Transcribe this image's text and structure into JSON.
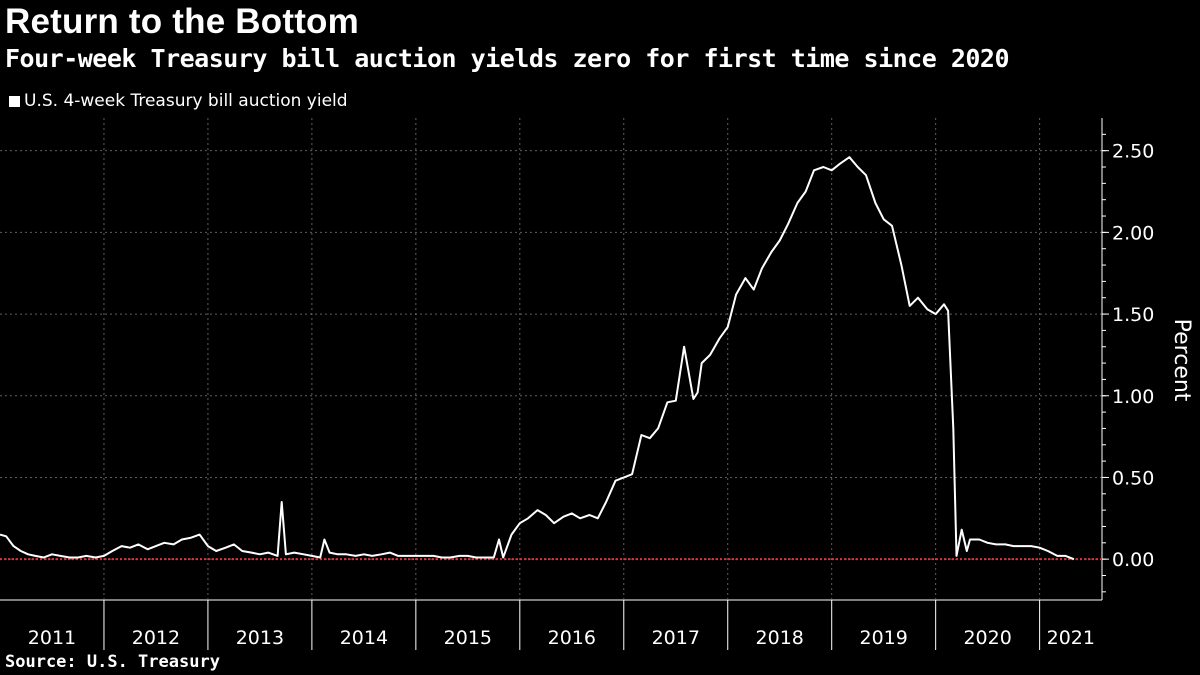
{
  "title": "Return to the Bottom",
  "subtitle": "Four-week Treasury bill auction yields zero for first time since 2020",
  "source": "Source: U.S. Treasury",
  "colors": {
    "background": "#000000",
    "line": "#ffffff",
    "zero_line": "#e0303a",
    "grid": "#888888"
  },
  "chart_data": {
    "type": "line",
    "ylabel": "Percent",
    "ylim": [
      -0.25,
      2.7
    ],
    "yticks": [
      0.0,
      0.5,
      1.0,
      1.5,
      2.0,
      2.5
    ],
    "ytick_labels": [
      "0.00",
      "0.50",
      "1.00",
      "1.50",
      "2.00",
      "2.50"
    ],
    "xlim": [
      2011.0,
      2021.6
    ],
    "year_labels": [
      "2011",
      "2012",
      "2013",
      "2014",
      "2015",
      "2016",
      "2017",
      "2018",
      "2019",
      "2020",
      "2021"
    ],
    "grid": true,
    "reference_line": 0.0,
    "series": [
      {
        "name": "U.S. 4-week Treasury bill auction yield",
        "x": [
          2011.0,
          2011.06,
          2011.13,
          2011.2,
          2011.27,
          2011.34,
          2011.42,
          2011.5,
          2011.58,
          2011.67,
          2011.75,
          2011.83,
          2011.92,
          2012.0,
          2012.08,
          2012.17,
          2012.25,
          2012.33,
          2012.42,
          2012.5,
          2012.58,
          2012.67,
          2012.75,
          2012.83,
          2012.92,
          2013.0,
          2013.08,
          2013.17,
          2013.25,
          2013.33,
          2013.42,
          2013.5,
          2013.58,
          2013.67,
          2013.71,
          2013.75,
          2013.83,
          2013.92,
          2014.0,
          2014.08,
          2014.12,
          2014.17,
          2014.25,
          2014.33,
          2014.42,
          2014.5,
          2014.58,
          2014.67,
          2014.75,
          2014.83,
          2014.92,
          2015.0,
          2015.08,
          2015.17,
          2015.25,
          2015.33,
          2015.42,
          2015.5,
          2015.58,
          2015.67,
          2015.75,
          2015.8,
          2015.84,
          2015.92,
          2016.0,
          2016.08,
          2016.17,
          2016.25,
          2016.33,
          2016.42,
          2016.5,
          2016.58,
          2016.67,
          2016.75,
          2016.83,
          2016.92,
          2017.0,
          2017.08,
          2017.17,
          2017.25,
          2017.33,
          2017.42,
          2017.5,
          2017.58,
          2017.67,
          2017.71,
          2017.75,
          2017.83,
          2017.92,
          2018.0,
          2018.08,
          2018.17,
          2018.25,
          2018.33,
          2018.42,
          2018.5,
          2018.58,
          2018.67,
          2018.75,
          2018.83,
          2018.92,
          2019.0,
          2019.08,
          2019.17,
          2019.25,
          2019.33,
          2019.42,
          2019.5,
          2019.58,
          2019.67,
          2019.75,
          2019.83,
          2019.92,
          2020.0,
          2020.08,
          2020.12,
          2020.17,
          2020.2,
          2020.25,
          2020.3,
          2020.33,
          2020.42,
          2020.5,
          2020.58,
          2020.67,
          2020.75,
          2020.83,
          2020.92,
          2021.0,
          2021.08,
          2021.17,
          2021.25,
          2021.33
        ],
        "y": [
          0.15,
          0.14,
          0.08,
          0.05,
          0.03,
          0.02,
          0.01,
          0.03,
          0.02,
          0.01,
          0.01,
          0.02,
          0.01,
          0.02,
          0.05,
          0.08,
          0.07,
          0.09,
          0.06,
          0.08,
          0.1,
          0.09,
          0.12,
          0.13,
          0.15,
          0.08,
          0.05,
          0.07,
          0.09,
          0.05,
          0.04,
          0.03,
          0.04,
          0.02,
          0.35,
          0.03,
          0.04,
          0.03,
          0.02,
          0.01,
          0.12,
          0.04,
          0.03,
          0.03,
          0.02,
          0.03,
          0.02,
          0.03,
          0.04,
          0.02,
          0.02,
          0.02,
          0.02,
          0.02,
          0.01,
          0.01,
          0.02,
          0.02,
          0.01,
          0.01,
          0.01,
          0.12,
          0.01,
          0.15,
          0.22,
          0.25,
          0.3,
          0.27,
          0.22,
          0.26,
          0.28,
          0.25,
          0.27,
          0.25,
          0.35,
          0.48,
          0.5,
          0.52,
          0.76,
          0.74,
          0.8,
          0.96,
          0.97,
          1.3,
          0.98,
          1.02,
          1.2,
          1.25,
          1.35,
          1.42,
          1.62,
          1.72,
          1.65,
          1.78,
          1.88,
          1.95,
          2.05,
          2.18,
          2.25,
          2.38,
          2.4,
          2.38,
          2.42,
          2.46,
          2.4,
          2.35,
          2.18,
          2.08,
          2.04,
          1.8,
          1.55,
          1.6,
          1.53,
          1.5,
          1.56,
          1.52,
          0.8,
          0.02,
          0.18,
          0.05,
          0.12,
          0.12,
          0.1,
          0.09,
          0.09,
          0.08,
          0.08,
          0.08,
          0.07,
          0.05,
          0.02,
          0.02,
          0.0
        ]
      }
    ]
  }
}
